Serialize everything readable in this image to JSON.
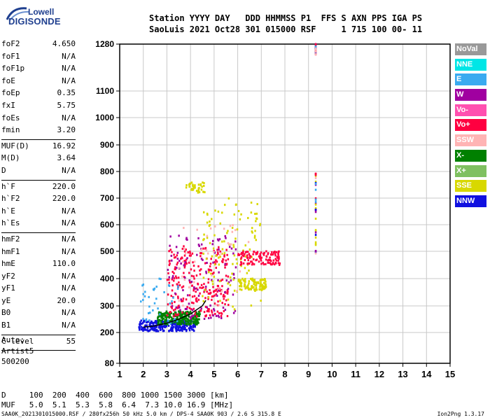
{
  "logo": {
    "line1": "Lowell",
    "line2": "DIGISONDE"
  },
  "header": {
    "row1": "Station YYYY DAY   DDD HHMMSS P1  FFS S AXN PPS IGA PS",
    "row2": "SaoLuis 2021 Oct28 301 015000 RSF     1 715 100 00- 11"
  },
  "params_group1": [
    {
      "name": "foF2",
      "value": "4.650"
    },
    {
      "name": "foF1",
      "value": "N/A"
    },
    {
      "name": "foF1p",
      "value": "N/A"
    },
    {
      "name": "foE",
      "value": "N/A"
    },
    {
      "name": "foEp",
      "value": "0.35"
    },
    {
      "name": "fxI",
      "value": "5.75"
    },
    {
      "name": "foEs",
      "value": "N/A"
    },
    {
      "name": "fmin",
      "value": "3.20"
    }
  ],
  "params_group2": [
    {
      "name": "MUF(D)",
      "value": "16.92"
    },
    {
      "name": "M(D)",
      "value": "3.64"
    },
    {
      "name": "D",
      "value": "N/A"
    }
  ],
  "params_group3": [
    {
      "name": "h`F",
      "value": "220.0"
    },
    {
      "name": "h`F2",
      "value": "220.0"
    },
    {
      "name": "h`E",
      "value": "N/A"
    },
    {
      "name": "h`Es",
      "value": "N/A"
    }
  ],
  "params_group4": [
    {
      "name": "hmF2",
      "value": "N/A"
    },
    {
      "name": "hmF1",
      "value": "N/A"
    },
    {
      "name": "hmE",
      "value": "110.0"
    },
    {
      "name": "yF2",
      "value": "N/A"
    },
    {
      "name": "yF1",
      "value": "N/A"
    },
    {
      "name": "yE",
      "value": "20.0"
    },
    {
      "name": "B0",
      "value": "N/A"
    },
    {
      "name": "B1",
      "value": "N/A"
    }
  ],
  "params_group5": [
    {
      "name": "C-level",
      "value": "55"
    }
  ],
  "auto": {
    "line1": "Auto:",
    "line2": "Artist5",
    "line3": "500200"
  },
  "footer": {
    "d_row": "D     100  200  400  600  800 1000 1500 3000 [km]",
    "muf_row": "MUF   5.0  5.1  5.3  5.8  6.4  7.3 10.0 16.9 [MHz]",
    "file_line": "SAA0K_2021301015000.RSF / 280fx256h 50 kHz 5.0 km / DPS-4 SAA0K 903 / 2.6 S 315.8 E",
    "version": "Ion2Png 1.3.17"
  },
  "legend": [
    {
      "label": "NoVal",
      "color": "#999999"
    },
    {
      "label": "NNE",
      "color": "#00e6e6"
    },
    {
      "label": "E",
      "color": "#3aaaf0"
    },
    {
      "label": "W",
      "color": "#a000a0"
    },
    {
      "label": "Vo-",
      "color": "#ff50b0"
    },
    {
      "label": "Vo+",
      "color": "#ff0040"
    },
    {
      "label": "SSW",
      "color": "#ffb4b4"
    },
    {
      "label": "X-",
      "color": "#008000"
    },
    {
      "label": "X+",
      "color": "#7fc060"
    },
    {
      "label": "SSE",
      "color": "#d8d800"
    },
    {
      "label": "NNW",
      "color": "#1010e0"
    }
  ],
  "chart_data": {
    "type": "scatter",
    "xlabel": "",
    "ylabel": "",
    "xlim": [
      1,
      15
    ],
    "ylim": [
      80,
      1280
    ],
    "x_ticks": [
      1,
      2,
      3,
      4,
      5,
      6,
      7,
      8,
      9,
      10,
      11,
      12,
      13,
      14,
      15
    ],
    "y_ticks": [
      80,
      200,
      300,
      400,
      500,
      600,
      700,
      800,
      900,
      1000,
      1100,
      1280
    ],
    "y_scale": "non-linear (ionogram virtual height)",
    "grid": true,
    "trace": {
      "name": "F2 trace",
      "x": [
        2.0,
        2.5,
        3.0,
        3.5,
        4.0,
        4.5,
        4.65
      ],
      "y": [
        220,
        225,
        235,
        250,
        270,
        300,
        320
      ]
    },
    "echo_clusters": [
      {
        "label": "NNW",
        "x_range": [
          1.8,
          4.2
        ],
        "y_range": [
          205,
          245
        ],
        "density": "high"
      },
      {
        "label": "X-",
        "x_range": [
          2.6,
          4.4
        ],
        "y_range": [
          230,
          280
        ],
        "density": "high"
      },
      {
        "label": "Vo+",
        "x_range": [
          3.0,
          5.6
        ],
        "y_range": [
          260,
          520
        ],
        "density": "high"
      },
      {
        "label": "W",
        "x_range": [
          3.0,
          6.0
        ],
        "y_range": [
          250,
          560
        ],
        "density": "medium"
      },
      {
        "label": "SSE",
        "x_range": [
          4.5,
          7.0
        ],
        "y_range": [
          280,
          700
        ],
        "density": "medium"
      },
      {
        "label": "E",
        "x_range": [
          1.8,
          3.5
        ],
        "y_range": [
          230,
          400
        ],
        "density": "low"
      },
      {
        "label": "SSW",
        "x_range": [
          3.5,
          6.5
        ],
        "y_range": [
          300,
          600
        ],
        "density": "low"
      },
      {
        "label": "Vo+",
        "x_range": [
          6.0,
          7.8
        ],
        "y_range": [
          450,
          500
        ],
        "density": "medium"
      },
      {
        "label": "SSE",
        "x_range": [
          6.0,
          7.2
        ],
        "y_range": [
          355,
          400
        ],
        "density": "medium"
      },
      {
        "label": "SSE",
        "x_range": [
          3.8,
          4.6
        ],
        "y_range": [
          720,
          760
        ],
        "density": "low"
      },
      {
        "label": "mixed",
        "x": 9.3,
        "y_range": [
          490,
          800
        ],
        "density": "low"
      },
      {
        "label": "mixed",
        "x": 9.3,
        "y_range": [
          1240,
          1280
        ],
        "density": "low"
      }
    ]
  }
}
